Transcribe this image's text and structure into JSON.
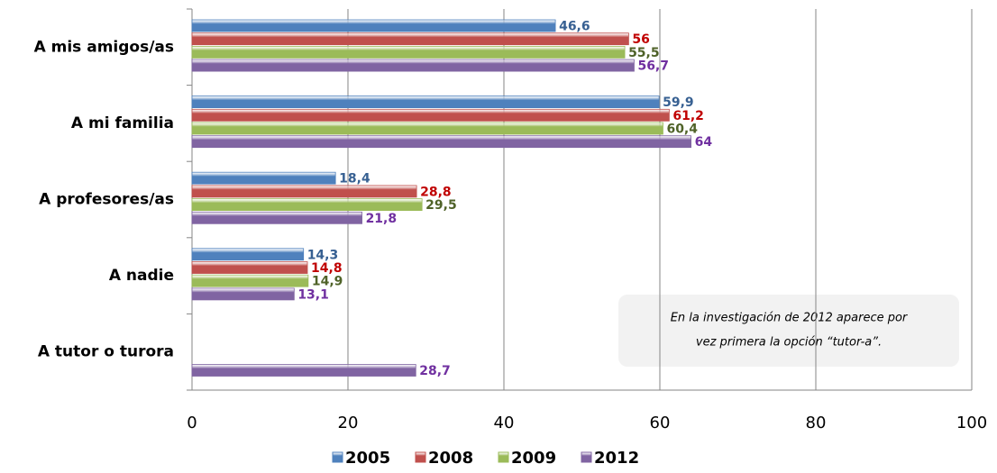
{
  "chart_data": {
    "type": "bar",
    "orientation": "horizontal",
    "categories": [
      "A mis amigos/as",
      "A mi familia",
      "A profesores/as",
      "A nadie",
      "A tutor o turora"
    ],
    "series": [
      {
        "name": "2005",
        "color": "#4f81bd",
        "label_color": "#376092",
        "values": [
          46.6,
          59.9,
          18.4,
          14.3,
          null
        ],
        "value_labels": [
          "46,6",
          "59,9",
          "18,4",
          "14,3",
          null
        ]
      },
      {
        "name": "2008",
        "color": "#c0504d",
        "label_color": "#c00000",
        "values": [
          56,
          61.2,
          28.8,
          14.8,
          null
        ],
        "value_labels": [
          "56",
          "61,2",
          "28,8",
          "14,8",
          null
        ]
      },
      {
        "name": "2009",
        "color": "#9bbb59",
        "label_color": "#4f6228",
        "values": [
          55.5,
          60.4,
          29.5,
          14.9,
          null
        ],
        "value_labels": [
          "55,5",
          "60,4",
          "29,5",
          "14,9",
          null
        ]
      },
      {
        "name": "2012",
        "color": "#8064a2",
        "label_color": "#7030a0",
        "values": [
          56.7,
          64,
          21.8,
          13.1,
          28.7
        ],
        "value_labels": [
          "56,7",
          "64",
          "21,8",
          "13,1",
          "28,7"
        ]
      }
    ],
    "xlim": [
      0,
      100
    ],
    "xticks": [
      0,
      20,
      40,
      60,
      80,
      100
    ],
    "grid": true,
    "legend": "bottom",
    "annotation": [
      "En la investigación de 2012 aparece por",
      "vez primera la opción “tutor-a”."
    ]
  }
}
